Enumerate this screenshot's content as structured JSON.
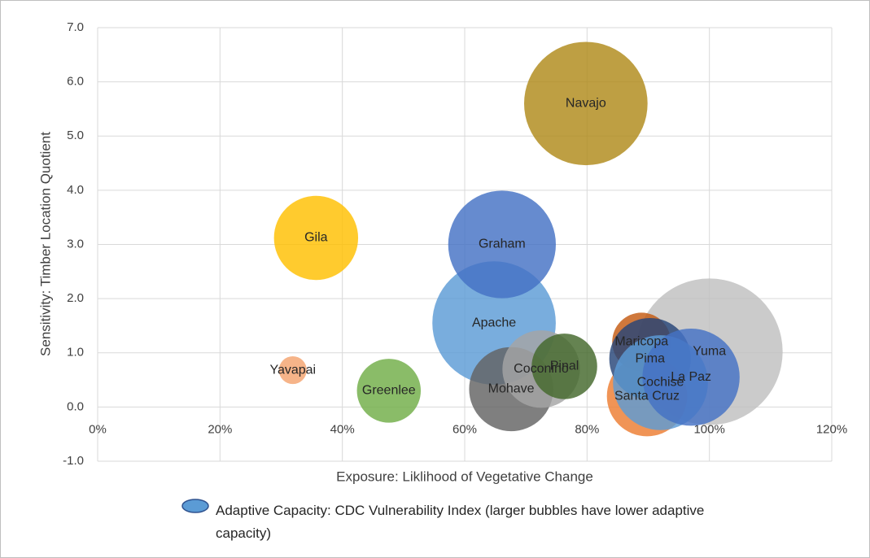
{
  "chart_data": {
    "type": "bubble",
    "x_label": "Exposure: Liklihood of Vegetative Change",
    "y_label": "Sensitivity: Timber Location Quotient",
    "size_legend": "Adaptive Capacity: CDC Vulnerability Index (larger bubbles have lower adaptive capacity)",
    "size_legend_color": "#5b9bd5",
    "xlim": [
      0,
      120
    ],
    "ylim": [
      -1,
      7
    ],
    "xticks": [
      {
        "value": 0,
        "label": "0%"
      },
      {
        "value": 20,
        "label": "20%"
      },
      {
        "value": 40,
        "label": "40%"
      },
      {
        "value": 60,
        "label": "60%"
      },
      {
        "value": 80,
        "label": "80%"
      },
      {
        "value": 100,
        "label": "100%"
      },
      {
        "value": 120,
        "label": "120%"
      }
    ],
    "yticks": [
      {
        "value": -1,
        "label": "-1.0"
      },
      {
        "value": 0,
        "label": "0.0"
      },
      {
        "value": 1,
        "label": "1.0"
      },
      {
        "value": 2,
        "label": "2.0"
      },
      {
        "value": 3,
        "label": "3.0"
      },
      {
        "value": 4,
        "label": "4.0"
      },
      {
        "value": 5,
        "label": "5.0"
      },
      {
        "value": 6,
        "label": "6.0"
      },
      {
        "value": 7,
        "label": "7.0"
      }
    ],
    "grid": true,
    "points": [
      {
        "label": "Yuma",
        "x": 100,
        "y": 1.02,
        "size": 1.0,
        "color": "#bfbfbf"
      },
      {
        "label": "Navajo",
        "x": 79.8,
        "y": 5.6,
        "size": 0.71,
        "color": "#b08a1a"
      },
      {
        "label": "Apache",
        "x": 64.8,
        "y": 1.55,
        "size": 0.71,
        "color": "#5b9bd5"
      },
      {
        "label": "Graham",
        "x": 66.1,
        "y": 3.0,
        "size": 0.54,
        "color": "#4472c4"
      },
      {
        "label": "Gila",
        "x": 35.7,
        "y": 3.12,
        "size": 0.33,
        "color": "#ffc000"
      },
      {
        "label": "Mohave",
        "x": 67.6,
        "y": 0.33,
        "size": 0.33,
        "color": "#636363"
      },
      {
        "label": "Coconino",
        "x": 72.5,
        "y": 0.7,
        "size": 0.28,
        "color": "#a5a5a5"
      },
      {
        "label": "Pinal",
        "x": 76.3,
        "y": 0.75,
        "size": 0.2,
        "color": "#43682b"
      },
      {
        "label": "Greenlee",
        "x": 47.6,
        "y": 0.3,
        "size": 0.19,
        "color": "#70ad47"
      },
      {
        "label": "Maricopa",
        "x": 88.9,
        "y": 1.2,
        "size": 0.16,
        "color": "#c55a11"
      },
      {
        "label": "Santa Cruz",
        "x": 89.8,
        "y": 0.2,
        "size": 0.3,
        "color": "#ed7d31"
      },
      {
        "label": "Pima",
        "x": 90.3,
        "y": 0.89,
        "size": 0.31,
        "color": "#264478"
      },
      {
        "label": "Cochise",
        "x": 92,
        "y": 0.45,
        "size": 0.42,
        "color": "#5b9bd5"
      },
      {
        "label": "La Paz",
        "x": 97,
        "y": 0.55,
        "size": 0.44,
        "color": "#4472c4"
      },
      {
        "label": "Yavapai",
        "x": 31.9,
        "y": 0.68,
        "size": 0.036,
        "color": "#f4a36f"
      }
    ]
  }
}
